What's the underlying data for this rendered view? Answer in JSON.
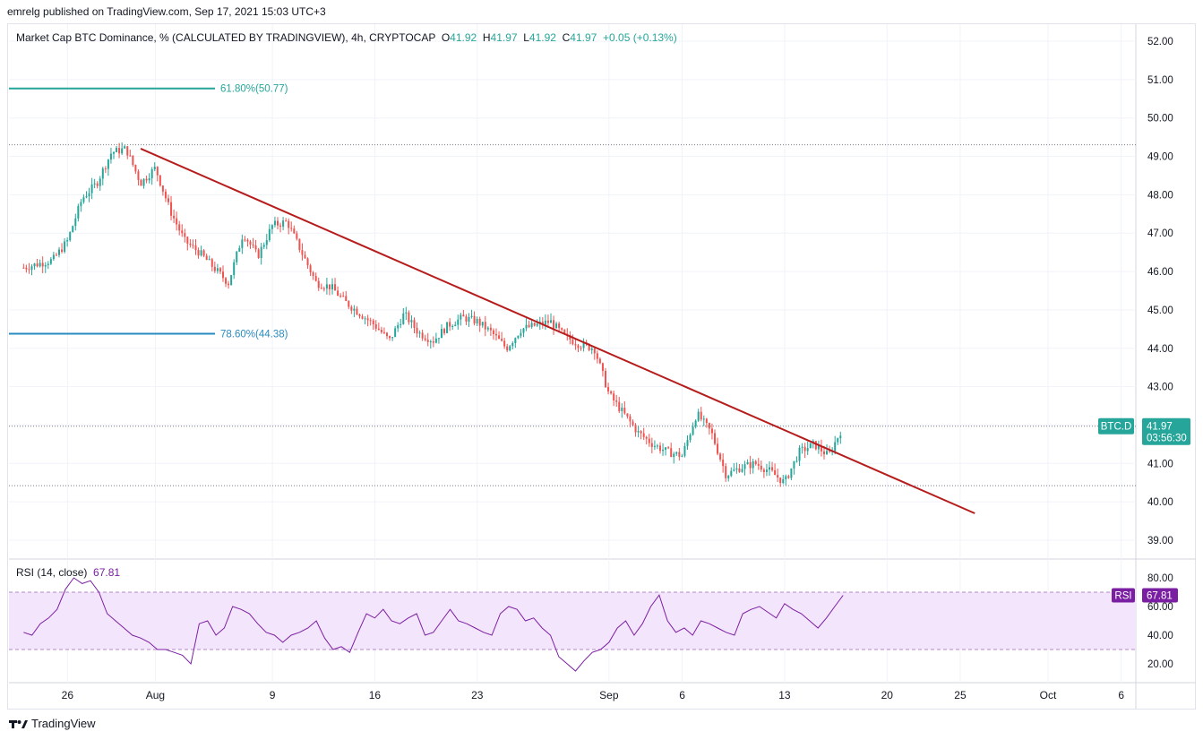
{
  "header": {
    "published_by": "emrelg published on TradingView.com, Sep 17, 2021 15:03 UTC+3"
  },
  "legend": {
    "title": "Market Cap BTC Dominance, % (CALCULATED BY TRADINGVIEW), 4h, CRYPTOCAP",
    "o_label": "O",
    "o_value": "41.92",
    "h_label": "H",
    "h_value": "41.97",
    "l_label": "L",
    "l_value": "41.92",
    "c_label": "C",
    "c_value": "41.97",
    "change": "+0.05 (+0.13%)"
  },
  "rsi_legend": {
    "label": "RSI (14, close)",
    "value": "67.81"
  },
  "footer": {
    "brand": "TradingView"
  },
  "colors": {
    "up": "#26a69a",
    "down": "#ef5350",
    "trendline": "#b71c1c",
    "fib618": "#26a69a",
    "fib786": "#2a8bbf",
    "rsi": "#7b1fa2",
    "rsi_band": "#f3e5fb",
    "grid": "#f0f3fa",
    "axis_text": "#131722"
  },
  "chart_data": [
    {
      "type": "candlestick",
      "symbol_badge": "BTC.D",
      "last_price": "41.97",
      "countdown": "03:56:30",
      "y_ticks": [
        "52.00",
        "51.00",
        "50.00",
        "49.00",
        "48.00",
        "47.00",
        "46.00",
        "45.00",
        "44.00",
        "43.00",
        "42.00",
        "41.00",
        "40.00",
        "39.00"
      ],
      "x_ticks": [
        "26",
        "Aug",
        "9",
        "16",
        "23",
        "Sep",
        "6",
        "13",
        "20",
        "25",
        "Oct",
        "6"
      ],
      "ylim": [
        38.5,
        52.5
      ],
      "fib_levels": [
        {
          "label": "61.80%(50.77)",
          "value": 50.77
        },
        {
          "label": "78.60%(44.38)",
          "value": 44.38
        }
      ],
      "horizontal_levels": [
        49.3,
        41.97,
        40.42
      ],
      "trendline": [
        {
          "date": "2021-07-31",
          "value": 49.2
        },
        {
          "date": "2021-09-26",
          "value": 39.7
        }
      ],
      "price_path": [
        [
          "2021-07-23",
          46.1
        ],
        [
          "2021-07-25",
          46.3
        ],
        [
          "2021-07-26",
          46.8
        ],
        [
          "2021-07-27",
          47.9
        ],
        [
          "2021-07-28",
          48.3
        ],
        [
          "2021-07-29",
          49.1
        ],
        [
          "2021-07-30",
          49.2
        ],
        [
          "2021-07-31",
          48.3
        ],
        [
          "2021-08-01",
          48.7
        ],
        [
          "2021-08-02",
          47.6
        ],
        [
          "2021-08-03",
          46.8
        ],
        [
          "2021-08-04",
          46.5
        ],
        [
          "2021-08-06",
          45.7
        ],
        [
          "2021-08-07",
          47.0
        ],
        [
          "2021-08-08",
          46.4
        ],
        [
          "2021-08-09",
          47.2
        ],
        [
          "2021-08-10",
          47.3
        ],
        [
          "2021-08-11",
          46.5
        ],
        [
          "2021-08-12",
          45.7
        ],
        [
          "2021-08-13",
          45.6
        ],
        [
          "2021-08-14",
          45.2
        ],
        [
          "2021-08-15",
          44.9
        ],
        [
          "2021-08-16",
          44.6
        ],
        [
          "2021-08-17",
          44.2
        ],
        [
          "2021-08-18",
          44.9
        ],
        [
          "2021-08-19",
          44.4
        ],
        [
          "2021-08-20",
          44.2
        ],
        [
          "2021-08-21",
          44.6
        ],
        [
          "2021-08-22",
          44.8
        ],
        [
          "2021-08-23",
          44.7
        ],
        [
          "2021-08-24",
          44.4
        ],
        [
          "2021-08-25",
          44.0
        ],
        [
          "2021-08-26",
          44.5
        ],
        [
          "2021-08-27",
          44.6
        ],
        [
          "2021-08-28",
          44.7
        ],
        [
          "2021-08-29",
          44.3
        ],
        [
          "2021-08-30",
          44.1
        ],
        [
          "2021-08-31",
          44.0
        ],
        [
          "2021-09-01",
          42.8
        ],
        [
          "2021-09-02",
          42.3
        ],
        [
          "2021-09-03",
          41.8
        ],
        [
          "2021-09-04",
          41.5
        ],
        [
          "2021-09-05",
          41.3
        ],
        [
          "2021-09-06",
          41.2
        ],
        [
          "2021-09-07",
          42.3
        ],
        [
          "2021-09-08",
          41.8
        ],
        [
          "2021-09-09",
          40.7
        ],
        [
          "2021-09-10",
          40.9
        ],
        [
          "2021-09-11",
          41.0
        ],
        [
          "2021-09-12",
          40.8
        ],
        [
          "2021-09-13",
          40.5
        ],
        [
          "2021-09-14",
          41.3
        ],
        [
          "2021-09-15",
          41.5
        ],
        [
          "2021-09-16",
          41.2
        ],
        [
          "2021-09-17",
          41.97
        ]
      ]
    },
    {
      "type": "line",
      "name": "RSI",
      "badge": "RSI",
      "last_value": "67.81",
      "y_ticks": [
        "80.00",
        "60.00",
        "40.00",
        "20.00"
      ],
      "ylim": [
        10,
        90
      ],
      "band": [
        30,
        70
      ],
      "values": [
        42,
        40,
        48,
        52,
        58,
        72,
        80,
        76,
        78,
        70,
        55,
        50,
        45,
        40,
        38,
        35,
        30,
        30,
        28,
        26,
        20,
        48,
        50,
        40,
        45,
        60,
        58,
        55,
        48,
        42,
        40,
        35,
        40,
        42,
        45,
        50,
        38,
        30,
        32,
        28,
        42,
        55,
        52,
        58,
        50,
        48,
        52,
        55,
        40,
        42,
        50,
        58,
        50,
        48,
        45,
        42,
        40,
        55,
        60,
        58,
        50,
        52,
        45,
        40,
        25,
        20,
        15,
        22,
        28,
        30,
        35,
        45,
        50,
        40,
        48,
        60,
        68,
        50,
        42,
        45,
        40,
        50,
        48,
        45,
        42,
        40,
        55,
        58,
        60,
        56,
        52,
        62,
        58,
        55,
        50,
        45,
        52,
        60,
        67.81
      ]
    }
  ]
}
